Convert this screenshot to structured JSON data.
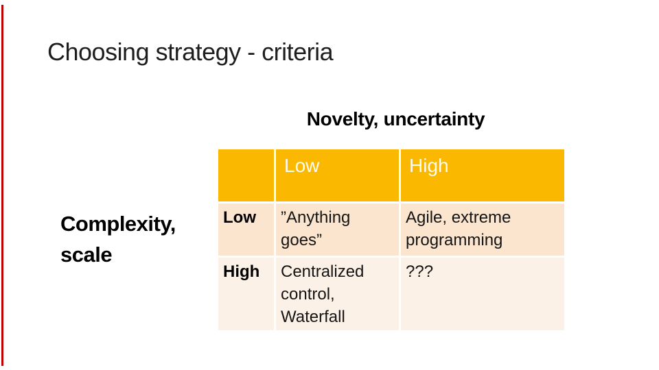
{
  "slide": {
    "title": "Choosing strategy - criteria",
    "column_axis_title": "Novelty, uncertainty",
    "row_axis_title": "Complexity, scale"
  },
  "matrix": {
    "corner": "",
    "column_headers": [
      "Low",
      "High"
    ],
    "rows": [
      {
        "label": "Low",
        "cells": [
          "”Anything goes”",
          "Agile, extreme programming"
        ]
      },
      {
        "label": "High",
        "cells": [
          "Centralized control, Waterfall",
          "???"
        ]
      }
    ]
  },
  "colors": {
    "header_bg": "#FAB900",
    "header_text": "#FFFCF0",
    "row_low_bg": "#FBE5CE",
    "row_high_bg": "#FCF1E6",
    "left_accent_line": "#C00000",
    "title_text": "#1e1e1e",
    "body_text": "#141414"
  }
}
